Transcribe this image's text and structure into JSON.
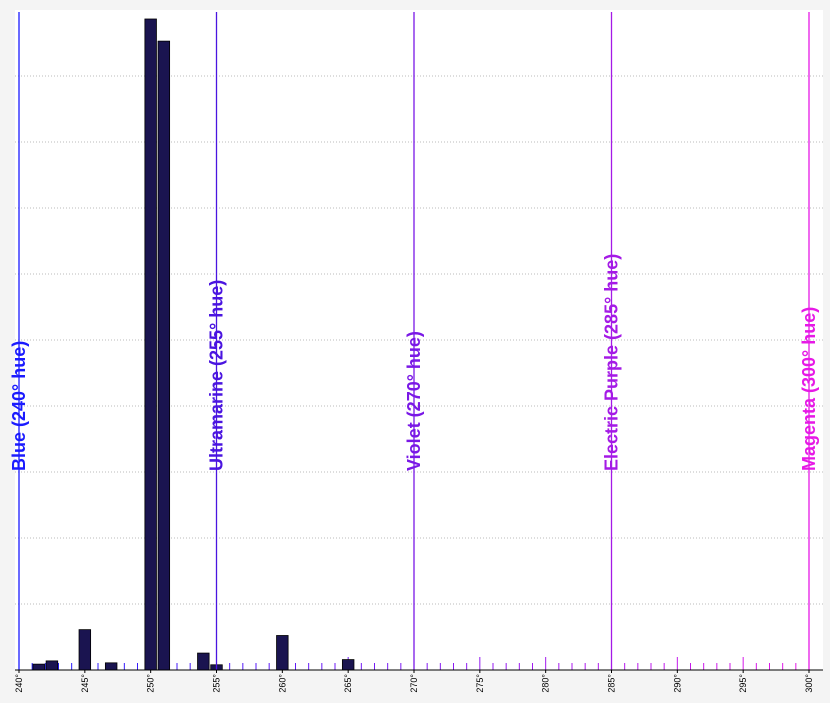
{
  "chart_data": {
    "type": "bar",
    "title": "",
    "xlabel": "",
    "ylabel": "",
    "xlim": [
      240,
      300
    ],
    "ylim": [
      0,
      100
    ],
    "grid": true,
    "bar_color": "#1a1450",
    "x_ticks": [
      "240°",
      "245°",
      "250°",
      "255°",
      "260°",
      "265°",
      "270°",
      "275°",
      "280°",
      "285°",
      "290°",
      "295°",
      "300°"
    ],
    "bars": [
      {
        "x": 241.5,
        "value": 0.9
      },
      {
        "x": 242.5,
        "value": 1.4
      },
      {
        "x": 245,
        "value": 6.2
      },
      {
        "x": 247,
        "value": 1.1
      },
      {
        "x": 250,
        "value": 100
      },
      {
        "x": 251,
        "value": 96.6
      },
      {
        "x": 254,
        "value": 2.6
      },
      {
        "x": 255,
        "value": 0.8
      },
      {
        "x": 260,
        "value": 5.3
      },
      {
        "x": 265,
        "value": 1.6
      }
    ],
    "hue_markers": [
      {
        "x": 240,
        "label": "Blue  (240° hue)",
        "color": "#1a1aff"
      },
      {
        "x": 255,
        "label": "Ultramarine  (255° hue)",
        "color": "#4a14e0"
      },
      {
        "x": 270,
        "label": "Violet  (270° hue)",
        "color": "#7a18e6"
      },
      {
        "x": 285,
        "label": "Electric Purple  (285° hue)",
        "color": "#a41ae6"
      },
      {
        "x": 300,
        "label": "Magenta  (300° hue)",
        "color": "#e619e6"
      }
    ]
  }
}
